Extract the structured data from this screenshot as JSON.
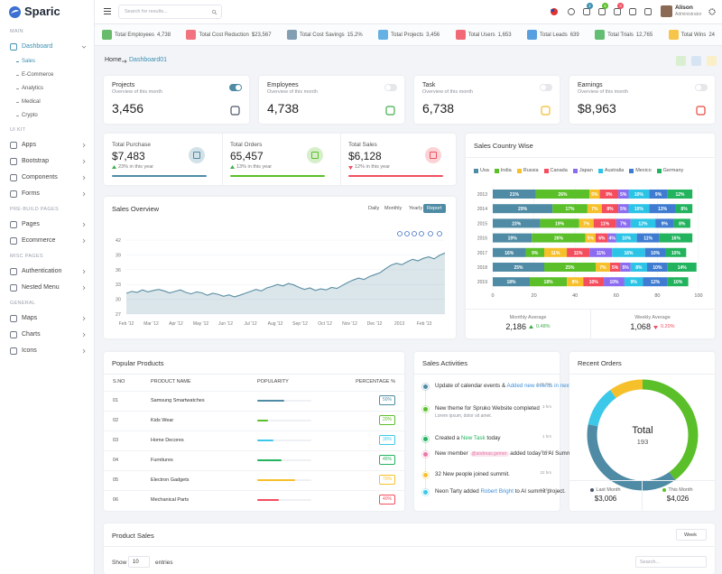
{
  "header": {
    "logo": "Sparic",
    "search_placeholder": "Search for results...",
    "badges": [
      "2",
      "5",
      "3"
    ],
    "user_name": "Alison",
    "user_role": "Administrator"
  },
  "sidebar": [
    {
      "title": "MAIN",
      "items": [
        {
          "label": "Dashboard",
          "active": true,
          "active_sub": 0,
          "sub": [
            "Sales",
            "E-Commerce",
            "Analytics",
            "Medical",
            "Crypto"
          ]
        }
      ]
    },
    {
      "title": "UI KIT",
      "items": [
        {
          "label": "Apps"
        },
        {
          "label": "Bootstrap"
        },
        {
          "label": "Components"
        },
        {
          "label": "Forms"
        }
      ]
    },
    {
      "title": "PRE-BUILD PAGES",
      "items": [
        {
          "label": "Pages"
        },
        {
          "label": "Ecommerce"
        }
      ]
    },
    {
      "title": "MISC PAGES",
      "items": [
        {
          "label": "Authentication"
        },
        {
          "label": "Nested Menu"
        }
      ]
    },
    {
      "title": "GENERAL",
      "items": [
        {
          "label": "Maps"
        },
        {
          "label": "Charts"
        },
        {
          "label": "Icons"
        }
      ]
    }
  ],
  "ticker": [
    {
      "label": "Total Employees",
      "value": "4,738",
      "color": "#4caf50"
    },
    {
      "label": "Total Cost Reduction",
      "value": "$23,567",
      "color": "#f05a6a"
    },
    {
      "label": "Total Cost Savings",
      "value": "15.2%",
      "color": "#6d8fa6"
    },
    {
      "label": "Total Projects",
      "value": "3,456",
      "color": "#4aa3df"
    },
    {
      "label": "Total Users",
      "value": "1,653",
      "color": "#ef4f5f"
    },
    {
      "label": "Total Leads",
      "value": "639",
      "color": "#3b8fd9"
    },
    {
      "label": "Total Trials",
      "value": "12,765",
      "color": "#47b35a"
    },
    {
      "label": "Total Wins",
      "value": "24",
      "color": "#f4bb2a"
    }
  ],
  "breadcrumb": {
    "home": "Home",
    "current": "Dashboard01"
  },
  "cards": [
    {
      "title": "Projects",
      "subtitle": "Overview of this month",
      "value": "3,456",
      "toggle_on": true,
      "color": "#4a5568"
    },
    {
      "title": "Employees",
      "subtitle": "Overview of this month",
      "value": "4,738",
      "toggle_on": false,
      "color": "#3fae4a"
    },
    {
      "title": "Task",
      "subtitle": "Overview of this month",
      "value": "6,738",
      "toggle_on": false,
      "color": "#f4bb2a"
    },
    {
      "title": "Earnings",
      "subtitle": "Overview of this month",
      "value": "$8,963",
      "toggle_on": false,
      "color": "#e8453c"
    }
  ],
  "stats": [
    {
      "title": "Total Purchase",
      "value": "$7,483",
      "change": "23% in this year",
      "direction": "up",
      "color": "#4f8ba5"
    },
    {
      "title": "Total Orders",
      "value": "65,457",
      "change": "13% in this year",
      "direction": "up",
      "color": "#5bbf2a"
    },
    {
      "title": "Total Sales",
      "value": "$6,128",
      "change": "12% in this year",
      "direction": "down",
      "color": "#ef4f5f"
    }
  ],
  "chart_data": [
    {
      "type": "line",
      "title": "Sales Overview",
      "buttons": [
        "Daily",
        "Monthly",
        "Yearly",
        "Report"
      ],
      "x_labels": [
        "Feb '12",
        "Mar '12",
        "Apr '12",
        "May '12",
        "Jun '12",
        "Jul '12",
        "Aug '12",
        "Sep '12",
        "Oct '12",
        "Nov '12",
        "Dec '12",
        "2013",
        "Feb '13"
      ],
      "series": [
        {
          "color": "#5a8ea3",
          "values": [
            31.2,
            31.6,
            31.4,
            31.9,
            31.5,
            31.8,
            32.0,
            31.7,
            31.3,
            31.6,
            31.9,
            31.4,
            31.1,
            31.5,
            31.3,
            30.8,
            31.2,
            31.0,
            30.6,
            30.9,
            30.5,
            30.8,
            31.2,
            31.6,
            32.0,
            31.7,
            32.3,
            32.6,
            33.0,
            32.7,
            33.2,
            32.9,
            32.4,
            32.0,
            32.3,
            31.8,
            32.1,
            31.9,
            32.4,
            32.2,
            32.8,
            33.4,
            33.9,
            34.3,
            34.0,
            34.6,
            35.0,
            35.4,
            36.2,
            36.9,
            37.3,
            37.0,
            37.6,
            38.1,
            37.8,
            38.3,
            38.6,
            38.2,
            38.9,
            39.4
          ]
        }
      ],
      "ylim": [
        27,
        42
      ],
      "yticks": [
        27,
        30,
        33,
        36,
        39,
        42
      ],
      "grid": true
    },
    {
      "type": "stacked-hbar",
      "title": "Sales Country Wise",
      "categories": [
        "2013",
        "2014",
        "2015",
        "2016",
        "2017",
        "2018",
        "2019"
      ],
      "series": [
        {
          "name": "Usa",
          "color": "#4f8ba5",
          "values": [
            21,
            29,
            23,
            19,
            16,
            25,
            18
          ],
          "value_labels": [
            "21%",
            "29%",
            "23%",
            "19%",
            "16%",
            "25%",
            "18%"
          ]
        },
        {
          "name": "India",
          "color": "#5bbf2a",
          "values": [
            26,
            17,
            19,
            26,
            9,
            25,
            18
          ],
          "value_labels": [
            "26%",
            "17%",
            "19%",
            "26%",
            "9%",
            "25%",
            "18%"
          ]
        },
        {
          "name": "Russia",
          "color": "#f6c02b",
          "values": [
            5,
            7,
            7,
            5,
            11,
            7,
            8
          ],
          "value_labels": [
            "5%",
            "7%",
            "7%",
            "5%",
            "11%",
            "7%",
            "8%"
          ]
        },
        {
          "name": "Canada",
          "color": "#f44e5e",
          "values": [
            9,
            8,
            11,
            6,
            11,
            5,
            10
          ],
          "value_labels": [
            "9%",
            "8%",
            "11%",
            "6%",
            "11%",
            "5%",
            "10%"
          ]
        },
        {
          "name": "Japan",
          "color": "#8b6cf0",
          "values": [
            5,
            5,
            7,
            4,
            11,
            5,
            10
          ],
          "value_labels": [
            "5%",
            "5%",
            "7%",
            "4%",
            "11%",
            "5%",
            "10%"
          ]
        },
        {
          "name": "Australia",
          "color": "#2cc4e6",
          "values": [
            10,
            10,
            12,
            10,
            16,
            8,
            9
          ],
          "value_labels": [
            "10%",
            "10%",
            "12%",
            "10%",
            "16%",
            "8%",
            "9%"
          ]
        },
        {
          "name": "Mexico",
          "color": "#3f7cd1",
          "values": [
            9,
            13,
            9,
            11,
            10,
            10,
            12
          ],
          "value_labels": [
            "9%",
            "13%",
            "9%",
            "11%",
            "10%",
            "10%",
            "12%"
          ]
        },
        {
          "name": "Germany",
          "color": "#22b35e",
          "values": [
            12,
            8,
            8,
            16,
            10,
            14,
            10
          ],
          "value_labels": [
            "12%",
            "8%",
            "8%",
            "16%",
            "10%",
            "14%",
            "10%"
          ]
        }
      ],
      "xlim": [
        0,
        100
      ],
      "xticks": [
        0,
        20,
        40,
        60,
        80,
        100
      ],
      "summary": [
        {
          "label": "Monthly Average",
          "value": "2,186",
          "change": "0.48%",
          "direction": "up"
        },
        {
          "label": "Weekly Average",
          "value": "1,068",
          "change": "0.20%",
          "direction": "down"
        }
      ]
    },
    {
      "type": "donut",
      "title": "Recent Orders",
      "center_label": "Total",
      "center_value": "193",
      "values": [
        40,
        38,
        12,
        10
      ],
      "colors": [
        "#5bbf2a",
        "#4f8ba5",
        "#3cc8e8",
        "#f6c02b"
      ],
      "summary": [
        {
          "label": "Last Month",
          "value": "$3,006",
          "color": "#4a5568"
        },
        {
          "label": "This Month",
          "value": "$4,026",
          "color": "#5bbf2a"
        }
      ]
    }
  ],
  "popular_products": {
    "title": "Popular Products",
    "columns": [
      "S.NO",
      "PRODUCT NAME",
      "POPULARITY",
      "PERCENTAGE %"
    ],
    "rows": [
      {
        "sno": "01",
        "name": "Samsung Smartwatches",
        "percent": 50,
        "percent_label": "50%",
        "color": "#4f8ba5"
      },
      {
        "sno": "02",
        "name": "Kids Wear",
        "percent": 20,
        "percent_label": "20%",
        "color": "#5bbf2a"
      },
      {
        "sno": "03",
        "name": "Home Decores",
        "percent": 30,
        "percent_label": "30%",
        "color": "#3cc8e8"
      },
      {
        "sno": "04",
        "name": "Furnitures",
        "percent": 45,
        "percent_label": "45%",
        "color": "#22b35e"
      },
      {
        "sno": "05",
        "name": "Electron Gadgets",
        "percent": 70,
        "percent_label": "70%",
        "color": "#f6c02b"
      },
      {
        "sno": "06",
        "name": "Mechanical Parts",
        "percent": 40,
        "percent_label": "40%",
        "color": "#f44e5e"
      }
    ]
  },
  "sales_activities": {
    "title": "Sales Activities",
    "items": [
      {
        "color": "#4f8ba5",
        "time": "4:45 Pm",
        "parts": [
          {
            "text": "Update of calendar events & "
          },
          {
            "text": "Added new events in next week.",
            "link": "#3f8fd9"
          }
        ]
      },
      {
        "color": "#5bbf2a",
        "time": "3 hrs",
        "parts": [
          {
            "text": "New theme for Spruko Website completed"
          }
        ],
        "sub": "Lorem ipsum, dolor sit amet."
      },
      {
        "color": "#22b35e",
        "time": "1 hrs",
        "parts": [
          {
            "text": "Created a "
          },
          {
            "text": "New Task",
            "link": "#22b35e"
          },
          {
            "text": " today"
          }
        ]
      },
      {
        "color": "#e879a8",
        "time": "Today",
        "parts": [
          {
            "text": "New member "
          },
          {
            "text": "@andreas.gerner",
            "badge": "#e879a8"
          },
          {
            "text": " added today to AI Summit."
          }
        ]
      },
      {
        "color": "#f6c02b",
        "time": "22 hrs",
        "parts": [
          {
            "text": "32 New people joined summit."
          }
        ]
      },
      {
        "color": "#3cc8e8",
        "time": "12 hrs",
        "parts": [
          {
            "text": "Neon Tarty added "
          },
          {
            "text": "Robert Bright",
            "link": "#3f8fd9"
          },
          {
            "text": " to AI summit project."
          }
        ]
      }
    ]
  },
  "product_sales": {
    "title": "Product Sales",
    "period": "Week",
    "show": "Show",
    "entries_count": "10",
    "entries": "entries",
    "search_placeholder": "Search..."
  }
}
